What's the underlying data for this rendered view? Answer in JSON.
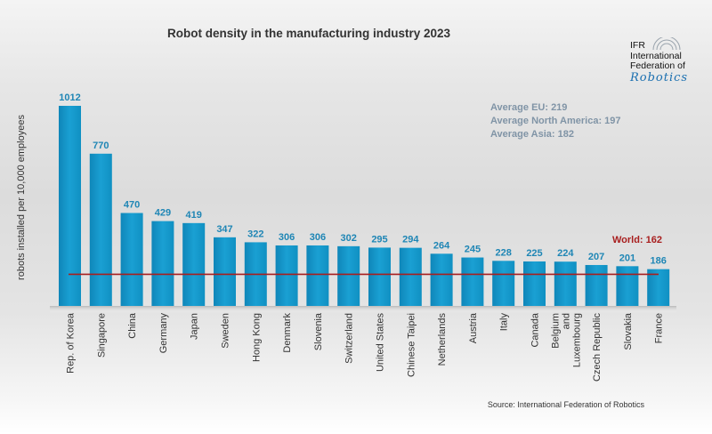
{
  "chart_data": {
    "type": "bar",
    "title": "Robot density in the manufacturing industry 2023",
    "ylabel": "robots installed per 10,000 employees",
    "xlabel": "",
    "categories": [
      "Rep. of Korea",
      "Singapore",
      "China",
      "Germany",
      "Japan",
      "Sweden",
      "Hong Kong",
      "Denmark",
      "Slovenia",
      "Switzerland",
      "United States",
      "Chinese Taipei",
      "Netherlands",
      "Austria",
      "Italy",
      "Canada",
      "Belgium and Luxembourg",
      "Czech Republic",
      "Slovakia",
      "France"
    ],
    "values": [
      1012,
      770,
      470,
      429,
      419,
      347,
      322,
      306,
      306,
      302,
      295,
      294,
      264,
      245,
      228,
      225,
      224,
      207,
      201,
      186
    ],
    "data_labels": [
      "1012",
      "770",
      "470",
      "429",
      "419",
      "347",
      "322",
      "306",
      "306",
      "302",
      "295",
      "294",
      "264",
      "245",
      "228",
      "225",
      "224",
      "207",
      "201",
      "186"
    ],
    "reference_line": {
      "label": "World: 162",
      "value": 162,
      "color": "#a81e1e"
    },
    "annotations": [
      "Average EU: 219",
      "Average North America: 197",
      "Average Asia: 182"
    ],
    "ylim": [
      0,
      1012
    ],
    "grid": false,
    "legend": "none",
    "bar_color": "#1596c8",
    "source": "Source: International Federation of Robotics"
  },
  "logo": {
    "lines": [
      "IFR",
      "International",
      "Federation of",
      "Robotics"
    ]
  }
}
